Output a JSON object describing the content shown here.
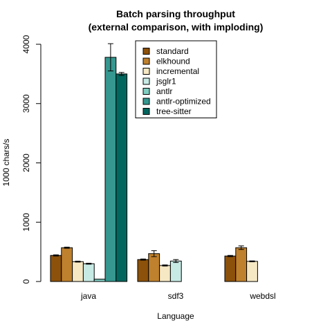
{
  "chart_data": {
    "type": "bar",
    "title": [
      "Batch parsing throughput",
      "(external comparison, with imploding)"
    ],
    "xlabel": "Language",
    "ylabel": "1000 chars/s",
    "ylim": [
      0,
      4000
    ],
    "yticks": [
      0,
      1000,
      2000,
      3000,
      4000
    ],
    "categories": [
      "java",
      "sdf3",
      "webdsl"
    ],
    "legend_position": "top-right",
    "series": [
      {
        "name": "standard",
        "color": "#8c510a",
        "values": [
          440,
          370,
          430
        ],
        "errors": [
          10,
          10,
          10
        ]
      },
      {
        "name": "elkhound",
        "color": "#bf812d",
        "values": [
          570,
          470,
          570
        ],
        "errors": [
          10,
          50,
          30
        ]
      },
      {
        "name": "incremental",
        "color": "#f6e8c3",
        "values": [
          335,
          270,
          340
        ],
        "errors": [
          8,
          10,
          8
        ]
      },
      {
        "name": "jsglr1",
        "color": "#c7eae5",
        "values": [
          300,
          345,
          null
        ],
        "errors": [
          8,
          25,
          null
        ]
      },
      {
        "name": "antlr",
        "color": "#80cdc1",
        "values": [
          40,
          null,
          null
        ],
        "errors": [
          0,
          null,
          null
        ]
      },
      {
        "name": "antlr-optimized",
        "color": "#35978f",
        "values": [
          3780,
          null,
          null
        ],
        "errors": [
          230,
          null,
          null
        ]
      },
      {
        "name": "tree-sitter",
        "color": "#01665e",
        "values": [
          3500,
          null,
          null
        ],
        "errors": [
          25,
          null,
          null
        ]
      }
    ]
  }
}
